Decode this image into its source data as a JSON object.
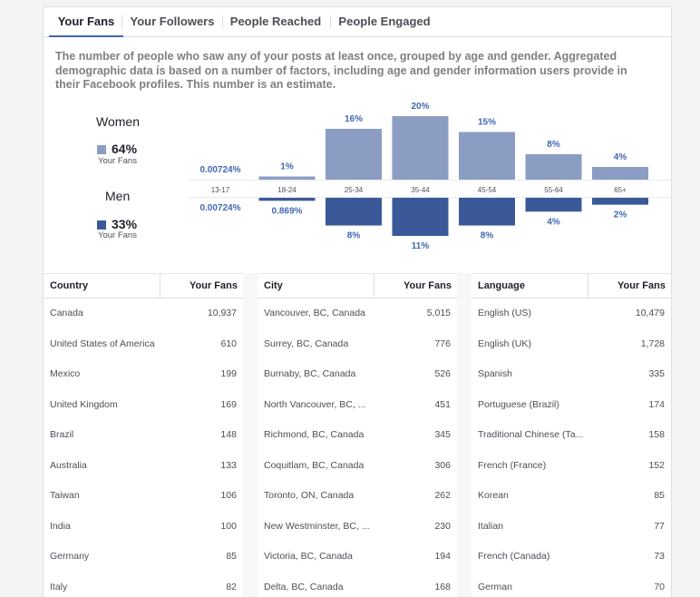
{
  "tabs": [
    {
      "label": "Your Fans",
      "active": true
    },
    {
      "label": "Your Followers",
      "active": false
    },
    {
      "label": "People Reached",
      "active": false
    },
    {
      "label": "People Engaged",
      "active": false
    }
  ],
  "description": "The number of people who saw any of your posts at least once, grouped by age and gender. Aggregated demographic data is based on a number of factors, including age and gender information users provide in their Facebook profiles. This number is an estimate.",
  "legend": {
    "women": {
      "title": "Women",
      "percent": "64%",
      "sub": "Your Fans",
      "color": "#8b9dc3"
    },
    "men": {
      "title": "Men",
      "percent": "33%",
      "sub": "Your Fans",
      "color": "#3b5998"
    }
  },
  "chart_data": {
    "type": "bar",
    "categories": [
      "13-17",
      "18-24",
      "25-34",
      "35-44",
      "45-54",
      "55-64",
      "65+"
    ],
    "series": [
      {
        "name": "Women",
        "values": [
          0.00724,
          1,
          16,
          20,
          15,
          8,
          4
        ],
        "labels": [
          "0.00724%",
          "1%",
          "16%",
          "20%",
          "15%",
          "8%",
          "4%"
        ],
        "color": "#8b9dc3"
      },
      {
        "name": "Men",
        "values": [
          0.00724,
          0.869,
          8,
          11,
          8,
          4,
          2
        ],
        "labels": [
          "0.00724%",
          "0.869%",
          "8%",
          "11%",
          "8%",
          "4%",
          "2%"
        ],
        "color": "#3b5998"
      }
    ]
  },
  "tables": [
    {
      "col1": "Country",
      "col2": "Your Fans",
      "rows": [
        [
          "Canada",
          "10,937"
        ],
        [
          "United States of America",
          "610"
        ],
        [
          "Mexico",
          "199"
        ],
        [
          "United Kingdom",
          "169"
        ],
        [
          "Brazil",
          "148"
        ],
        [
          "Australia",
          "133"
        ],
        [
          "Taiwan",
          "106"
        ],
        [
          "India",
          "100"
        ],
        [
          "Germany",
          "85"
        ],
        [
          "Italy",
          "82"
        ]
      ]
    },
    {
      "col1": "City",
      "col2": "Your Fans",
      "rows": [
        [
          "Vancouver, BC, Canada",
          "5,015"
        ],
        [
          "Surrey, BC, Canada",
          "776"
        ],
        [
          "Burnaby, BC, Canada",
          "526"
        ],
        [
          "North Vancouver, BC, ...",
          "451"
        ],
        [
          "Richmond, BC, Canada",
          "345"
        ],
        [
          "Coquitlam, BC, Canada",
          "306"
        ],
        [
          "Toronto, ON, Canada",
          "262"
        ],
        [
          "New Westminster, BC, ...",
          "230"
        ],
        [
          "Victoria, BC, Canada",
          "194"
        ],
        [
          "Delta, BC, Canada",
          "168"
        ]
      ]
    },
    {
      "col1": "Language",
      "col2": "Your Fans",
      "rows": [
        [
          "English (US)",
          "10,479"
        ],
        [
          "English (UK)",
          "1,728"
        ],
        [
          "Spanish",
          "335"
        ],
        [
          "Portuguese (Brazil)",
          "174"
        ],
        [
          "Traditional Chinese (Ta...",
          "158"
        ],
        [
          "French (France)",
          "152"
        ],
        [
          "Korean",
          "85"
        ],
        [
          "Italian",
          "77"
        ],
        [
          "French (Canada)",
          "73"
        ],
        [
          "German",
          "70"
        ]
      ]
    }
  ]
}
